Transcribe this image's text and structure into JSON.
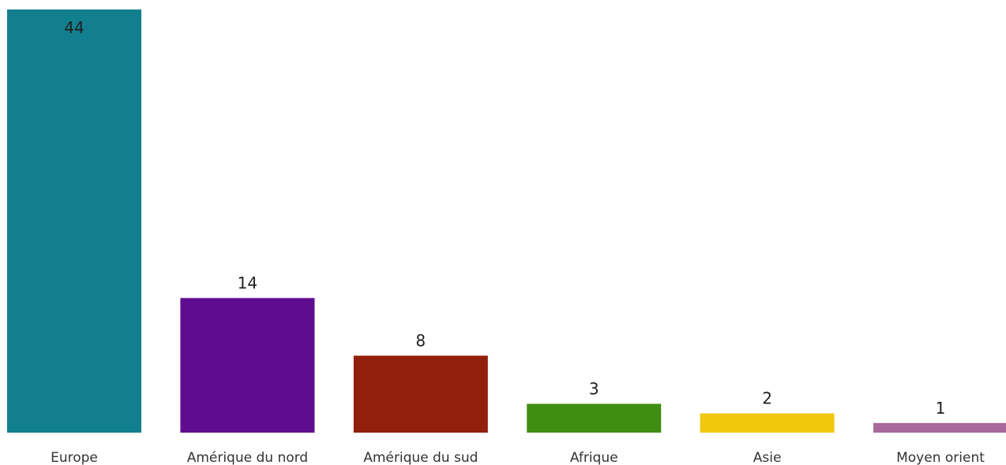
{
  "chart_data": {
    "type": "bar",
    "categories": [
      "Europe",
      "Amérique du nord",
      "Amérique du sud",
      "Afrique",
      "Asie",
      "Moyen orient"
    ],
    "values": [
      44,
      14,
      8,
      3,
      2,
      1
    ],
    "colors": [
      "#127f8f",
      "#600c90",
      "#901f0c",
      "#3f8e11",
      "#f2c80f",
      "#a66999"
    ],
    "ylim": [
      0,
      44
    ],
    "data_labels": true,
    "grid": false,
    "legend": "none"
  }
}
